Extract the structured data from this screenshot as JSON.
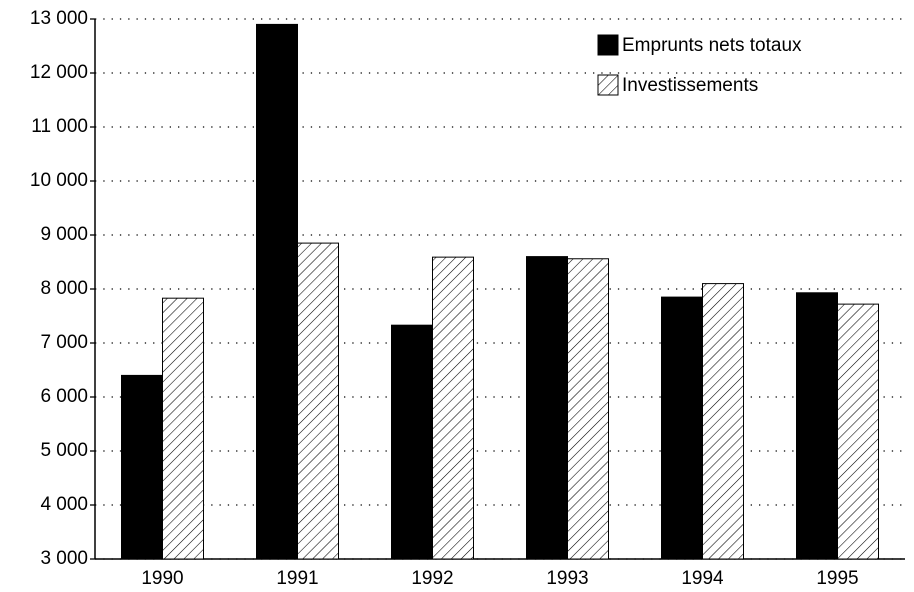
{
  "chart_data": {
    "type": "bar",
    "categories": [
      "1990",
      "1991",
      "1992",
      "1993",
      "1994",
      "1995"
    ],
    "series": [
      {
        "name": "Emprunts nets totaux",
        "color": "#000000",
        "hatch": false,
        "values": [
          6400,
          12900,
          7330,
          8600,
          7850,
          7930
        ]
      },
      {
        "name": "Investissements",
        "color": "#000000",
        "hatch": true,
        "values": [
          7830,
          8850,
          8590,
          8560,
          8100,
          7720
        ]
      }
    ],
    "ylim": [
      3000,
      13000
    ],
    "yticks": [
      {
        "value": 3000,
        "label": "3 000"
      },
      {
        "value": 4000,
        "label": "4 000"
      },
      {
        "value": 5000,
        "label": "5 000"
      },
      {
        "value": 6000,
        "label": "6 000"
      },
      {
        "value": 7000,
        "label": "7 000"
      },
      {
        "value": 8000,
        "label": "8 000"
      },
      {
        "value": 9000,
        "label": "9 000"
      },
      {
        "value": 10000,
        "label": "10 000"
      },
      {
        "value": 11000,
        "label": "11 000"
      },
      {
        "value": 12000,
        "label": "12 000"
      },
      {
        "value": 13000,
        "label": "13 000"
      }
    ],
    "grid": true,
    "legend": "top-right"
  }
}
